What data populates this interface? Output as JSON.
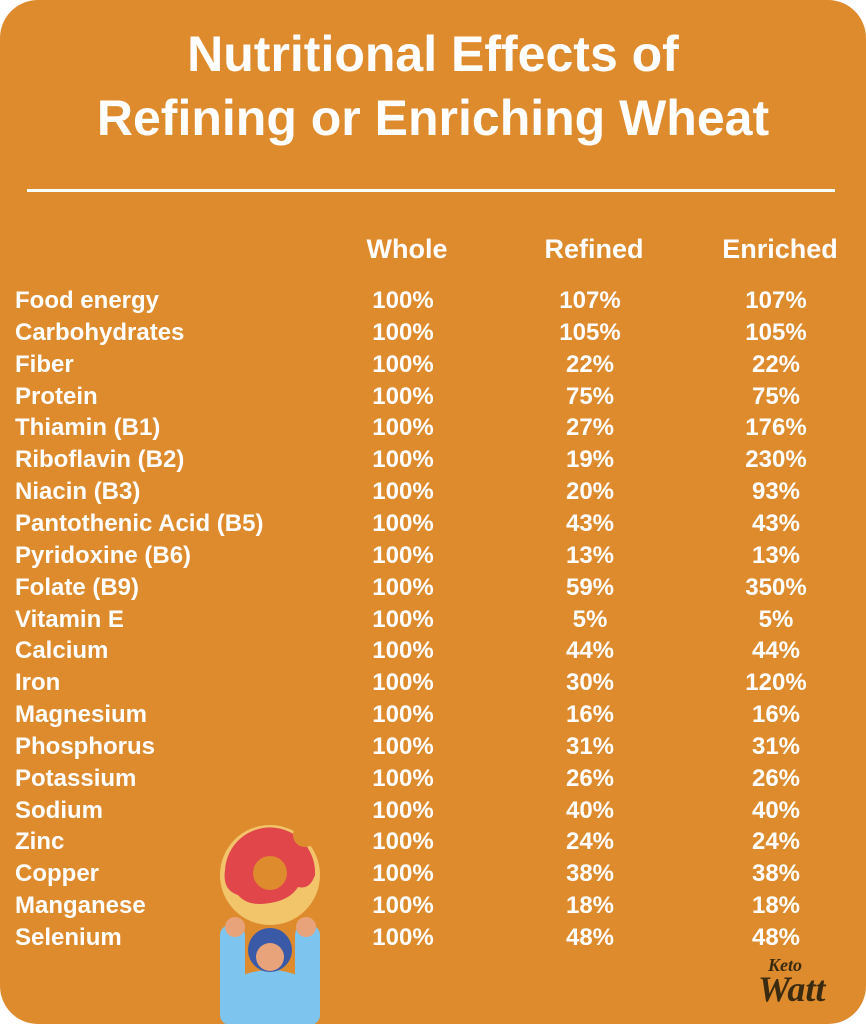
{
  "header": {
    "title": [
      "Nutritional Effects of",
      "Refining or Enriching Wheat"
    ]
  },
  "table": {
    "columns": [
      "Whole",
      "Refined",
      "Enriched"
    ],
    "rows": [
      [
        "Food energy",
        "100%",
        "107%",
        "107%"
      ],
      [
        "Carbohydrates",
        "100%",
        "105%",
        "105%"
      ],
      [
        "Fiber",
        "100%",
        "22%",
        "22%"
      ],
      [
        "Protein",
        "100%",
        "75%",
        "75%"
      ],
      [
        "Thiamin (B1)",
        "100%",
        "27%",
        "176%"
      ],
      [
        "Riboflavin (B2)",
        "100%",
        "19%",
        "230%"
      ],
      [
        "Niacin (B3)",
        "100%",
        "20%",
        "93%"
      ],
      [
        "Pantothenic Acid (B5)",
        "100%",
        "43%",
        "43%"
      ],
      [
        "Pyridoxine (B6)",
        "100%",
        "13%",
        "13%"
      ],
      [
        "Folate (B9)",
        "100%",
        "59%",
        "350%"
      ],
      [
        "Vitamin E",
        "100%",
        "5%",
        "5%"
      ],
      [
        "Calcium",
        "100%",
        "44%",
        "44%"
      ],
      [
        "Iron",
        "100%",
        "30%",
        "120%"
      ],
      [
        "Magnesium",
        "100%",
        "16%",
        "16%"
      ],
      [
        "Phosphorus",
        "100%",
        "31%",
        "31%"
      ],
      [
        "Potassium",
        "100%",
        "26%",
        "26%"
      ],
      [
        "Sodium",
        "100%",
        "40%",
        "40%"
      ],
      [
        "Zinc",
        "100%",
        "24%",
        "24%"
      ],
      [
        "Copper",
        "100%",
        "38%",
        "38%"
      ],
      [
        "Manganese",
        "100%",
        "18%",
        "18%"
      ],
      [
        "Selenium",
        "100%",
        "48%",
        "48%"
      ]
    ]
  },
  "logo": [
    "Keto",
    "Watt"
  ]
}
